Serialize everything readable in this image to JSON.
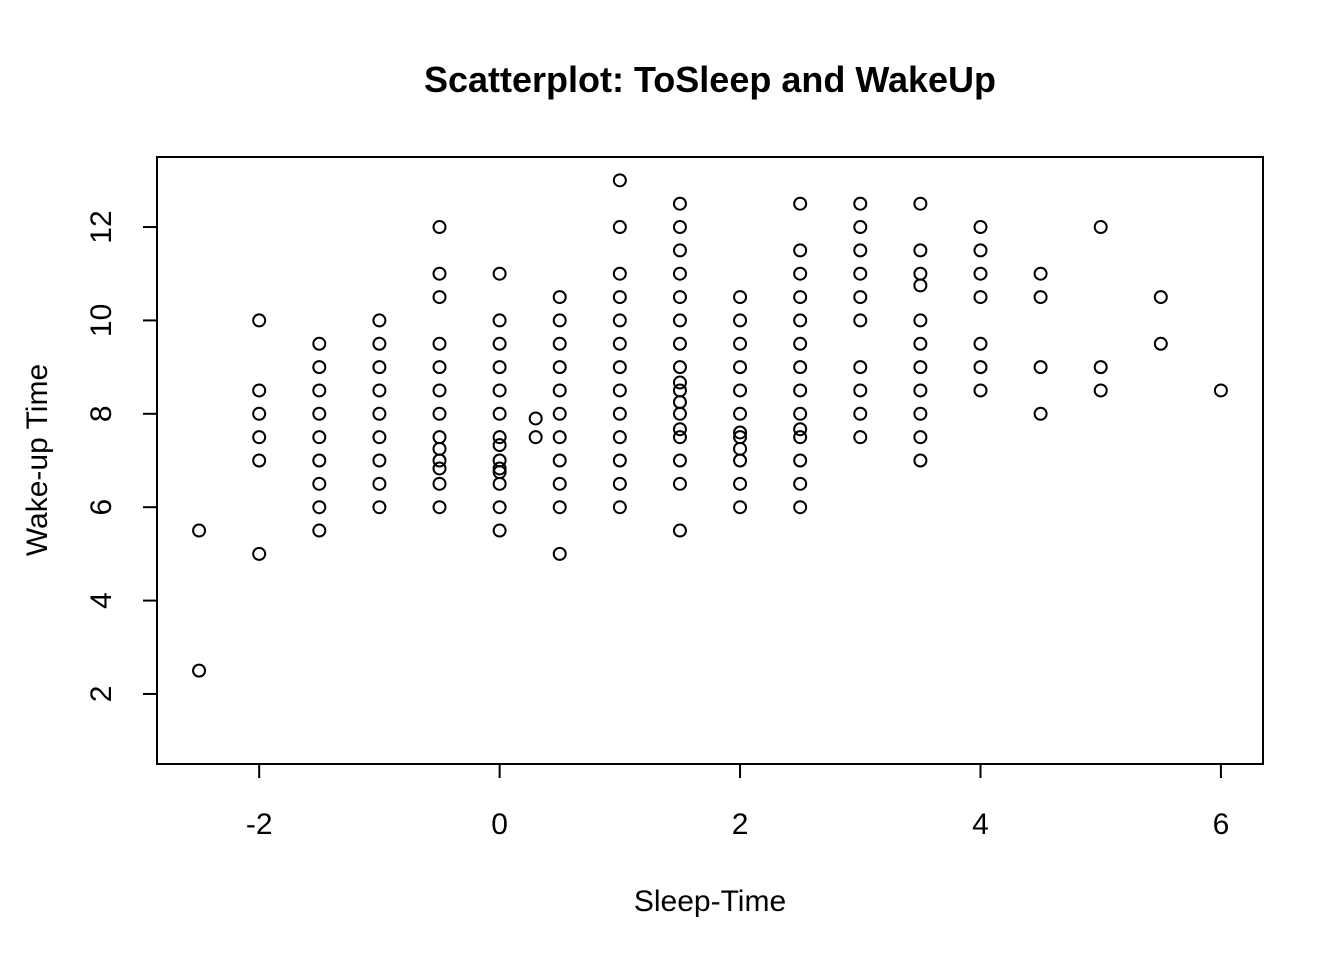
{
  "chart_data": {
    "type": "scatter",
    "title": "Scatterplot: ToSleep and WakeUp",
    "xlabel": "Sleep-Time",
    "ylabel": "Wake-up Time",
    "xlim": [
      -2.85,
      6.35
    ],
    "ylim": [
      0.5,
      13.5
    ],
    "x_ticks": [
      -2,
      0,
      2,
      4,
      6
    ],
    "y_ticks": [
      2,
      4,
      6,
      8,
      10,
      12
    ],
    "x_tick_labels": [
      "-2",
      "0",
      "2",
      "4",
      "6"
    ],
    "y_tick_labels": [
      "2",
      "4",
      "6",
      "8",
      "10",
      "12"
    ],
    "grid": false,
    "legend": "none",
    "marker": "open-circle",
    "points": [
      {
        "x": -2.5,
        "y": 5.5
      },
      {
        "x": -2.5,
        "y": 2.5
      },
      {
        "x": -2,
        "y": 10
      },
      {
        "x": -2,
        "y": 8.5
      },
      {
        "x": -2,
        "y": 8
      },
      {
        "x": -2,
        "y": 7.5
      },
      {
        "x": -2,
        "y": 7
      },
      {
        "x": -2,
        "y": 5
      },
      {
        "x": -1.5,
        "y": 9.5
      },
      {
        "x": -1.5,
        "y": 9
      },
      {
        "x": -1.5,
        "y": 8.5
      },
      {
        "x": -1.5,
        "y": 8
      },
      {
        "x": -1.5,
        "y": 7.5
      },
      {
        "x": -1.5,
        "y": 7
      },
      {
        "x": -1.5,
        "y": 6.5
      },
      {
        "x": -1.5,
        "y": 6
      },
      {
        "x": -1.5,
        "y": 5.5
      },
      {
        "x": -1,
        "y": 10
      },
      {
        "x": -1,
        "y": 9.5
      },
      {
        "x": -1,
        "y": 9
      },
      {
        "x": -1,
        "y": 8.5
      },
      {
        "x": -1,
        "y": 8
      },
      {
        "x": -1,
        "y": 7.5
      },
      {
        "x": -1,
        "y": 7
      },
      {
        "x": -1,
        "y": 6.5
      },
      {
        "x": -1,
        "y": 6
      },
      {
        "x": -0.5,
        "y": 12
      },
      {
        "x": -0.5,
        "y": 11
      },
      {
        "x": -0.5,
        "y": 10.5
      },
      {
        "x": -0.5,
        "y": 9.5
      },
      {
        "x": -0.5,
        "y": 9
      },
      {
        "x": -0.5,
        "y": 8.5
      },
      {
        "x": -0.5,
        "y": 8
      },
      {
        "x": -0.5,
        "y": 7.5
      },
      {
        "x": -0.5,
        "y": 7.25
      },
      {
        "x": -0.5,
        "y": 7
      },
      {
        "x": -0.5,
        "y": 6.83
      },
      {
        "x": -0.5,
        "y": 6.5
      },
      {
        "x": -0.5,
        "y": 6
      },
      {
        "x": 0,
        "y": 11
      },
      {
        "x": 0,
        "y": 10
      },
      {
        "x": 0,
        "y": 9.5
      },
      {
        "x": 0,
        "y": 9
      },
      {
        "x": 0,
        "y": 8.5
      },
      {
        "x": 0,
        "y": 8
      },
      {
        "x": 0,
        "y": 7.5
      },
      {
        "x": 0,
        "y": 7.33
      },
      {
        "x": 0,
        "y": 7
      },
      {
        "x": 0,
        "y": 6.83
      },
      {
        "x": 0,
        "y": 6.75
      },
      {
        "x": 0,
        "y": 6.5
      },
      {
        "x": 0,
        "y": 6
      },
      {
        "x": 0,
        "y": 5.5
      },
      {
        "x": 0.3,
        "y": 7.9
      },
      {
        "x": 0.3,
        "y": 7.5
      },
      {
        "x": 0.5,
        "y": 10.5
      },
      {
        "x": 0.5,
        "y": 10
      },
      {
        "x": 0.5,
        "y": 9.5
      },
      {
        "x": 0.5,
        "y": 9
      },
      {
        "x": 0.5,
        "y": 8.5
      },
      {
        "x": 0.5,
        "y": 8
      },
      {
        "x": 0.5,
        "y": 7.5
      },
      {
        "x": 0.5,
        "y": 7
      },
      {
        "x": 0.5,
        "y": 6.5
      },
      {
        "x": 0.5,
        "y": 6
      },
      {
        "x": 0.5,
        "y": 5
      },
      {
        "x": 1,
        "y": 13
      },
      {
        "x": 1,
        "y": 12
      },
      {
        "x": 1,
        "y": 11
      },
      {
        "x": 1,
        "y": 10.5
      },
      {
        "x": 1,
        "y": 10
      },
      {
        "x": 1,
        "y": 9.5
      },
      {
        "x": 1,
        "y": 9
      },
      {
        "x": 1,
        "y": 8.5
      },
      {
        "x": 1,
        "y": 8
      },
      {
        "x": 1,
        "y": 7.5
      },
      {
        "x": 1,
        "y": 7
      },
      {
        "x": 1,
        "y": 6.5
      },
      {
        "x": 1,
        "y": 6
      },
      {
        "x": 1.5,
        "y": 12.5
      },
      {
        "x": 1.5,
        "y": 12
      },
      {
        "x": 1.5,
        "y": 11.5
      },
      {
        "x": 1.5,
        "y": 11
      },
      {
        "x": 1.5,
        "y": 10.5
      },
      {
        "x": 1.5,
        "y": 10
      },
      {
        "x": 1.5,
        "y": 9.5
      },
      {
        "x": 1.5,
        "y": 9
      },
      {
        "x": 1.5,
        "y": 8.67
      },
      {
        "x": 1.5,
        "y": 8.5
      },
      {
        "x": 1.5,
        "y": 8.25
      },
      {
        "x": 1.5,
        "y": 8
      },
      {
        "x": 1.5,
        "y": 7.67
      },
      {
        "x": 1.5,
        "y": 7.5
      },
      {
        "x": 1.5,
        "y": 7
      },
      {
        "x": 1.5,
        "y": 6.5
      },
      {
        "x": 1.5,
        "y": 5.5
      },
      {
        "x": 2,
        "y": 10.5
      },
      {
        "x": 2,
        "y": 10
      },
      {
        "x": 2,
        "y": 9.5
      },
      {
        "x": 2,
        "y": 9
      },
      {
        "x": 2,
        "y": 8.5
      },
      {
        "x": 2,
        "y": 8
      },
      {
        "x": 2,
        "y": 7.6
      },
      {
        "x": 2,
        "y": 7.5
      },
      {
        "x": 2,
        "y": 7.25
      },
      {
        "x": 2,
        "y": 7
      },
      {
        "x": 2,
        "y": 6.5
      },
      {
        "x": 2,
        "y": 6
      },
      {
        "x": 2.5,
        "y": 12.5
      },
      {
        "x": 2.5,
        "y": 11.5
      },
      {
        "x": 2.5,
        "y": 11
      },
      {
        "x": 2.5,
        "y": 10.5
      },
      {
        "x": 2.5,
        "y": 10
      },
      {
        "x": 2.5,
        "y": 9.5
      },
      {
        "x": 2.5,
        "y": 9
      },
      {
        "x": 2.5,
        "y": 8.5
      },
      {
        "x": 2.5,
        "y": 8
      },
      {
        "x": 2.5,
        "y": 7.67
      },
      {
        "x": 2.5,
        "y": 7.5
      },
      {
        "x": 2.5,
        "y": 7
      },
      {
        "x": 2.5,
        "y": 6.5
      },
      {
        "x": 2.5,
        "y": 6
      },
      {
        "x": 3,
        "y": 12.5
      },
      {
        "x": 3,
        "y": 12
      },
      {
        "x": 3,
        "y": 11.5
      },
      {
        "x": 3,
        "y": 11
      },
      {
        "x": 3,
        "y": 10.5
      },
      {
        "x": 3,
        "y": 10
      },
      {
        "x": 3,
        "y": 9
      },
      {
        "x": 3,
        "y": 8.5
      },
      {
        "x": 3,
        "y": 8
      },
      {
        "x": 3,
        "y": 7.5
      },
      {
        "x": 3.5,
        "y": 12.5
      },
      {
        "x": 3.5,
        "y": 11.5
      },
      {
        "x": 3.5,
        "y": 11
      },
      {
        "x": 3.5,
        "y": 10.75
      },
      {
        "x": 3.5,
        "y": 10
      },
      {
        "x": 3.5,
        "y": 9.5
      },
      {
        "x": 3.5,
        "y": 9
      },
      {
        "x": 3.5,
        "y": 8.5
      },
      {
        "x": 3.5,
        "y": 8
      },
      {
        "x": 3.5,
        "y": 7.5
      },
      {
        "x": 3.5,
        "y": 7
      },
      {
        "x": 4,
        "y": 12
      },
      {
        "x": 4,
        "y": 11.5
      },
      {
        "x": 4,
        "y": 11
      },
      {
        "x": 4,
        "y": 10.5
      },
      {
        "x": 4,
        "y": 9.5
      },
      {
        "x": 4,
        "y": 9
      },
      {
        "x": 4,
        "y": 8.5
      },
      {
        "x": 4.5,
        "y": 11
      },
      {
        "x": 4.5,
        "y": 10.5
      },
      {
        "x": 4.5,
        "y": 9
      },
      {
        "x": 4.5,
        "y": 8
      },
      {
        "x": 5,
        "y": 12
      },
      {
        "x": 5,
        "y": 9
      },
      {
        "x": 5,
        "y": 8.5
      },
      {
        "x": 5.5,
        "y": 10.5
      },
      {
        "x": 5.5,
        "y": 9.5
      },
      {
        "x": 6,
        "y": 8.5
      }
    ]
  }
}
